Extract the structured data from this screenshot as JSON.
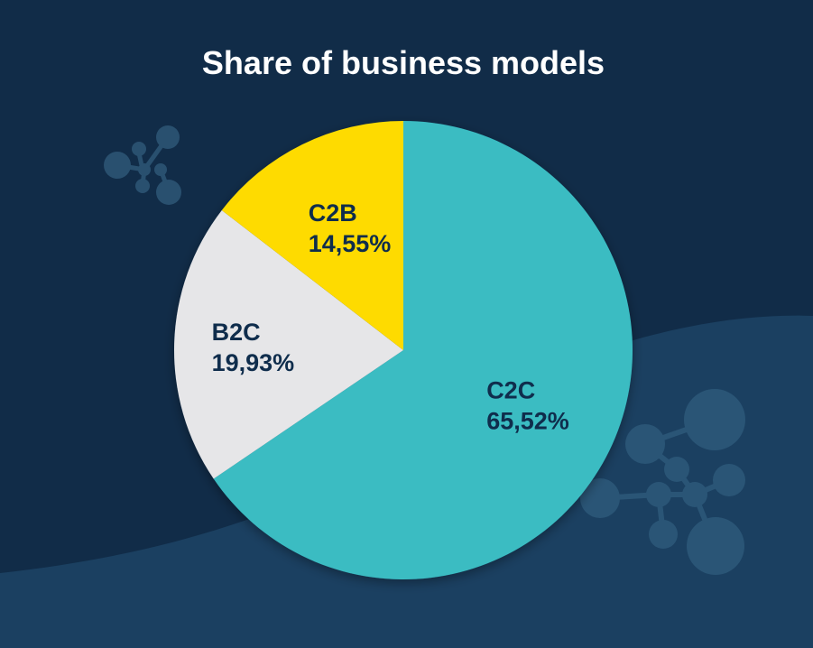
{
  "chart_data": {
    "type": "pie",
    "title": "Share of business models",
    "slices": [
      {
        "name": "C2C",
        "value": 65.52,
        "label": "65,52%",
        "color": "#3bbcc2"
      },
      {
        "name": "B2C",
        "value": 19.93,
        "label": "19,93%",
        "color": "#e6e6e8"
      },
      {
        "name": "C2B",
        "value": 14.55,
        "label": "14,55%",
        "color": "#fedb05"
      }
    ],
    "start_angle": "12 o'clock",
    "direction": "clockwise",
    "legend": "none"
  },
  "colors": {
    "background_dark": "#112c48",
    "background_wave": "#1b4061",
    "label_text": "#0f2d4c",
    "title_text": "#ffffff"
  },
  "decorations": {
    "background_icon": "molecule-network-icon"
  }
}
